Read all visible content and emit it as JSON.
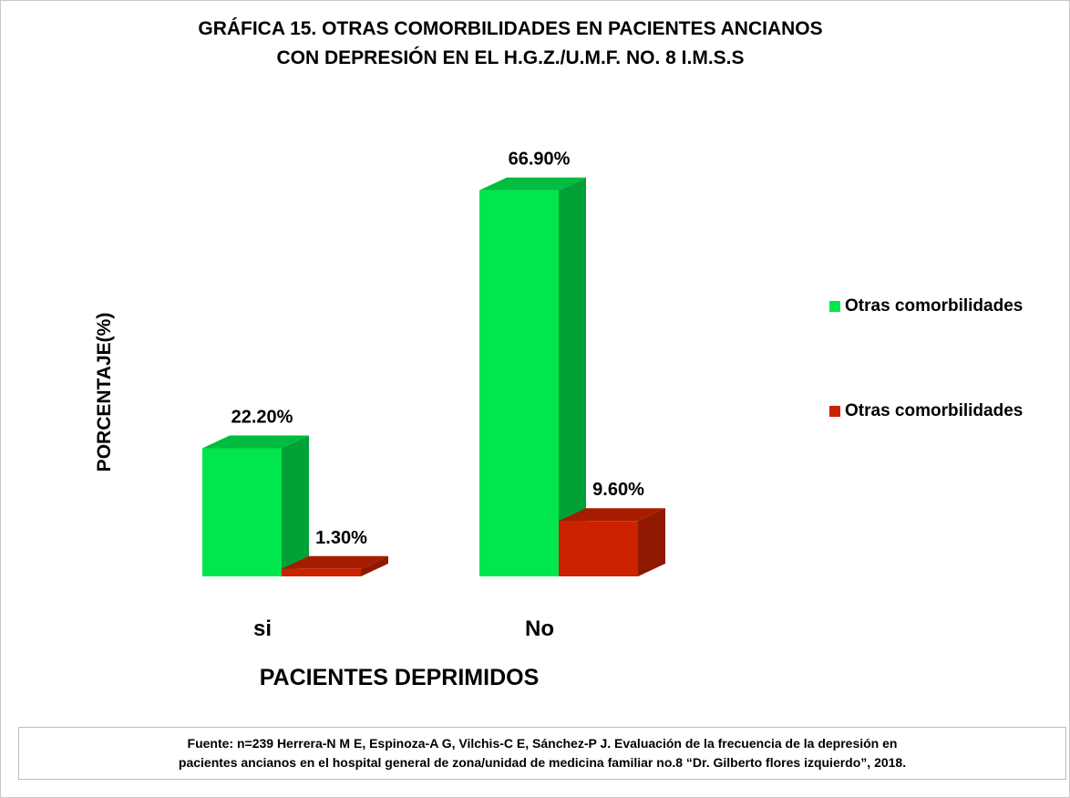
{
  "chart_data": {
    "type": "bar3d",
    "title": [
      "GRÁFICA 15. OTRAS COMORBILIDADES EN PACIENTES ANCIANOS",
      "CON DEPRESIÓN EN EL H.G.Z./U.M.F. NO. 8 I.M.S.S"
    ],
    "x_label": "PACIENTES DEPRIMIDOS",
    "y_label": "PORCENTAJE(%)",
    "categories": [
      "si",
      "No"
    ],
    "series": [
      {
        "name": "Otras comorbilidades",
        "color": "#00e64d",
        "values": [
          22.2,
          66.9
        ],
        "value_labels": [
          "22.20%",
          "66.90%"
        ]
      },
      {
        "name": "Otras comorbilidades",
        "color": "#cc2200",
        "values": [
          1.3,
          9.6
        ],
        "value_labels": [
          "1.30%",
          "9.60%"
        ]
      }
    ],
    "ylim": [
      0,
      70
    ],
    "legend": "right",
    "source": [
      "Fuente: n=239 Herrera-N M E, Espinoza-A G, Vilchis-C E, Sánchez-P J. Evaluación de la frecuencia de la depresión en",
      "pacientes ancianos en el hospital general de zona/unidad de medicina familiar no.8 “Dr. Gilberto flores izquierdo”, 2018."
    ]
  }
}
